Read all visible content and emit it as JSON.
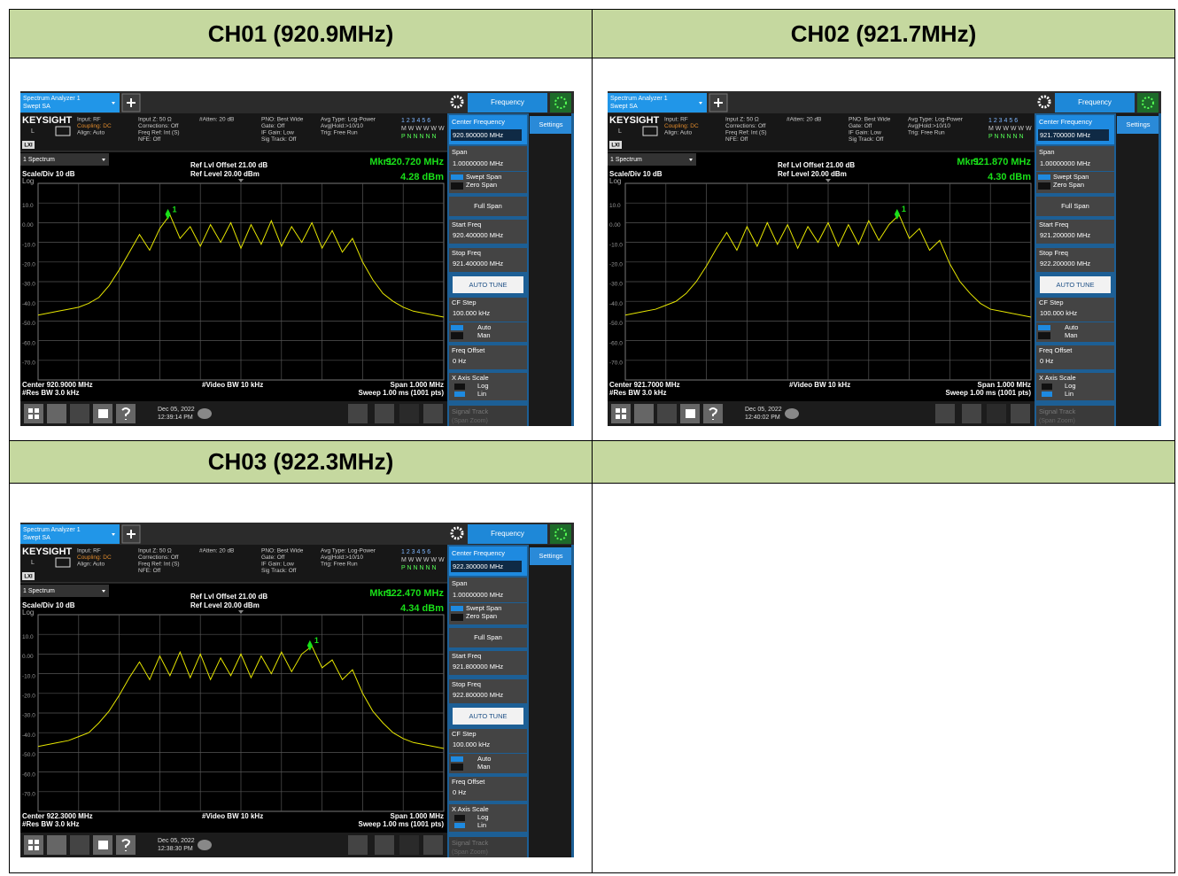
{
  "analyzer": {
    "tab": [
      "Spectrum Analyzer 1",
      "Swept SA"
    ],
    "menu_title": "Frequency",
    "settings": "Settings",
    "brand": "KEYSIGHT",
    "lxi": "LXI",
    "input_mode": "L",
    "info": [
      [
        "Input: RF",
        "Coupling: DC",
        "Align: Auto"
      ],
      [
        "Input Z: 50 Ω",
        "Corrections: Off",
        "Freq Ref: Int (S)",
        "NFE: Off"
      ],
      [
        "#Atten: 20 dB"
      ],
      [
        "PNO: Best Wide",
        "Gate: Off",
        "IF Gain: Low",
        "Sig Track: Off"
      ],
      [
        "Avg Type: Log-Power",
        "Avg|Hold:>10/10",
        "Trig: Free Run"
      ]
    ],
    "trace_rows": [
      "1 2 3 4 5 6",
      "M W W W W W",
      "P N N N N N"
    ],
    "window": "1 Spectrum",
    "scale": "Scale/Div 10 dB",
    "log": "Log",
    "ref_offset": "Ref Lvl Offset 21.00 dB",
    "ref_level": "Ref Level 20.00 dBm",
    "marker_name": "Mkr1",
    "marker_number": "1",
    "vbw": "#Video BW 10 kHz",
    "span_label": "Span 1.000 MHz",
    "rbw": "#Res BW 3.0 kHz",
    "sweep": "Sweep 1.00 ms (1001 pts)",
    "menu": {
      "center": "Center Frequency",
      "span": "Span",
      "span_value": "1.00000000 MHz",
      "swept": "Swept Span",
      "zero": "Zero Span",
      "full": "Full Span",
      "start": "Start Freq",
      "stop": "Stop Freq",
      "auto_tune": "AUTO TUNE",
      "cf_step": "CF Step",
      "cf_step_value": "100.000 kHz",
      "auto": "Auto",
      "man": "Man",
      "offset": "Freq Offset",
      "offset_value": "0 Hz",
      "x_scale": "X Axis Scale",
      "log": "Log",
      "lin": "Lin",
      "signal_track": "Signal Track",
      "span_zoom": "(Span Zoom)"
    },
    "ylim": [
      -80,
      20
    ],
    "yticks": [
      {
        "value": 10,
        "label": "10.0"
      },
      {
        "value": 0,
        "label": "0.00"
      },
      {
        "value": -10,
        "label": "-10.0"
      },
      {
        "value": -20,
        "label": "-20.0"
      },
      {
        "value": -30,
        "label": "-30.0"
      },
      {
        "value": -40,
        "label": "-40.0"
      },
      {
        "value": -50,
        "label": "-50.0"
      },
      {
        "value": -60,
        "label": "-60.0"
      },
      {
        "value": -70,
        "label": "-70.0"
      }
    ],
    "trace_color": "#e6e600",
    "marker_color": "#19e019"
  },
  "channels": [
    {
      "header": "CH01 (920.9MHz)",
      "center_freq": "920.900000 MHz",
      "start_freq": "920.400000 MHz",
      "stop_freq": "921.400000 MHz",
      "center_label": "Center 920.9000 MHz",
      "xlim": [
        920.4,
        921.4
      ],
      "marker": {
        "freq": 920.72,
        "freq_label": "920.720 MHz",
        "level": 4.28,
        "level_label": "4.28 dBm"
      },
      "date": "Dec 05, 2022",
      "time": "12:39:14 PM",
      "trace": [
        -47,
        -46,
        -45,
        -44,
        -43,
        -41,
        -38,
        -32,
        -24,
        -15,
        -6,
        -14,
        -3,
        4,
        -8,
        -2,
        -12,
        -1,
        -10,
        0,
        -13,
        -1,
        -11,
        1,
        -12,
        -2,
        -10,
        0,
        -13,
        -4,
        -15,
        -8,
        -20,
        -29,
        -36,
        -40,
        -43,
        -45,
        -46,
        -47,
        -48
      ]
    },
    {
      "header": "CH02 (921.7MHz)",
      "center_freq": "921.700000 MHz",
      "start_freq": "921.200000 MHz",
      "stop_freq": "922.200000 MHz",
      "center_label": "Center 921.7000 MHz",
      "xlim": [
        921.2,
        922.2
      ],
      "marker": {
        "freq": 921.87,
        "freq_label": "921.870 MHz",
        "level": 4.3,
        "level_label": "4.30 dBm"
      },
      "date": "Dec 05, 2022",
      "time": "12:40:02 PM",
      "trace": [
        -47,
        -46,
        -45,
        -44,
        -42,
        -40,
        -36,
        -30,
        -22,
        -13,
        -5,
        -14,
        -2,
        -12,
        0,
        -11,
        -1,
        -13,
        -2,
        -10,
        0,
        -12,
        -1,
        -11,
        1,
        -9,
        -1,
        4,
        -8,
        -3,
        -14,
        -9,
        -21,
        -30,
        -36,
        -41,
        -44,
        -45,
        -46,
        -47,
        -48
      ]
    },
    {
      "header": "CH03 (922.3MHz)",
      "center_freq": "922.300000 MHz",
      "start_freq": "921.800000 MHz",
      "stop_freq": "922.800000 MHz",
      "center_label": "Center 922.3000 MHz",
      "xlim": [
        921.8,
        922.8
      ],
      "marker": {
        "freq": 922.47,
        "freq_label": "922.470 MHz",
        "level": 4.34,
        "level_label": "4.34 dBm"
      },
      "date": "Dec 05, 2022",
      "time": "12:38:30 PM",
      "trace": [
        -47,
        -46,
        -45,
        -44,
        -42,
        -40,
        -35,
        -29,
        -21,
        -12,
        -4,
        -13,
        -1,
        -11,
        1,
        -12,
        0,
        -13,
        -2,
        -11,
        0,
        -12,
        -1,
        -10,
        1,
        -9,
        0,
        4,
        -7,
        -3,
        -13,
        -8,
        -20,
        -29,
        -35,
        -40,
        -43,
        -45,
        -46,
        -47,
        -48
      ]
    }
  ]
}
